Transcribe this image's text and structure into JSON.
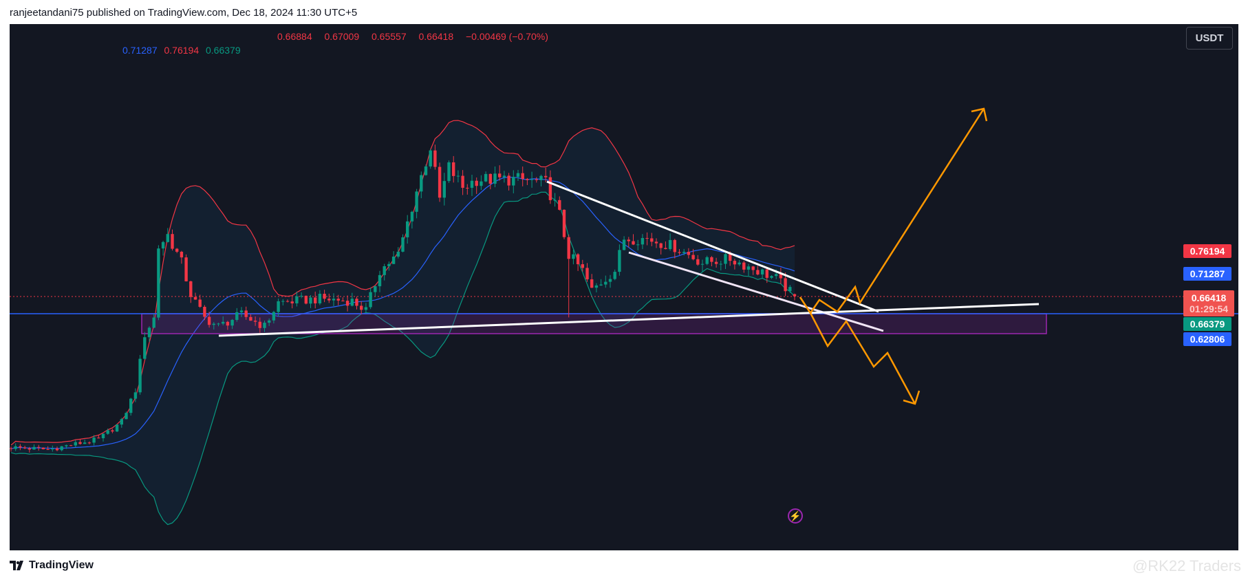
{
  "header": {
    "publisher_line": "ranjeetandani75 published on TradingView.com, Dec 18, 2024 11:30 UTC+5"
  },
  "legend": {
    "ohlc": [
      "0.66884",
      "0.67009",
      "0.65557",
      "0.66418",
      "−0.00469 (−0.70%)"
    ],
    "bollinger": [
      {
        "value": "0.71287",
        "color": "#2962ff"
      },
      {
        "value": "0.76194",
        "color": "#f23645"
      },
      {
        "value": "0.66379",
        "color": "#089981"
      }
    ]
  },
  "currency_button": "USDT",
  "price_labels": [
    {
      "name": "bb-upper",
      "value": "0.76194",
      "color": "#f23645"
    },
    {
      "name": "bb-basis",
      "value": "0.71287",
      "color": "#2962ff"
    },
    {
      "name": "last-price",
      "value": "0.66418",
      "countdown": "01:29:54",
      "color": "#f05350"
    },
    {
      "name": "bb-lower",
      "value": "0.66379",
      "color": "#089981"
    },
    {
      "name": "horizontal-line",
      "value": "0.62806",
      "color": "#2962ff"
    }
  ],
  "footer": {
    "brand": "TradingView",
    "watermark": "@RK22 Traders"
  },
  "colors": {
    "up": "#089981",
    "down": "#f23645",
    "background": "#131722",
    "zone": "#9c27b0",
    "projection": "#ff9800"
  },
  "chart_data": {
    "type": "candlestick",
    "symbol_quote": "USDT",
    "candles": 171,
    "close_path_keypoints": [
      [
        0,
        0.338
      ],
      [
        8,
        0.333
      ],
      [
        19,
        0.355
      ],
      [
        24,
        0.393
      ],
      [
        27,
        0.462
      ],
      [
        29,
        0.582
      ],
      [
        31,
        0.617
      ],
      [
        32,
        0.771
      ],
      [
        34,
        0.797
      ],
      [
        37,
        0.737
      ],
      [
        39,
        0.668
      ],
      [
        42,
        0.617
      ],
      [
        45,
        0.599
      ],
      [
        50,
        0.625
      ],
      [
        55,
        0.599
      ],
      [
        58,
        0.651
      ],
      [
        67,
        0.659
      ],
      [
        74,
        0.654
      ],
      [
        77,
        0.634
      ],
      [
        80,
        0.72
      ],
      [
        84,
        0.754
      ],
      [
        88,
        0.892
      ],
      [
        91,
        0.987
      ],
      [
        93,
        0.874
      ],
      [
        95,
        0.943
      ],
      [
        98,
        0.9
      ],
      [
        101,
        0.917
      ],
      [
        110,
        0.917
      ],
      [
        116,
        0.909
      ],
      [
        119,
        0.84
      ],
      [
        121,
        0.754
      ],
      [
        124,
        0.72
      ],
      [
        126,
        0.677
      ],
      [
        131,
        0.72
      ],
      [
        133,
        0.789
      ],
      [
        138,
        0.789
      ],
      [
        144,
        0.771
      ],
      [
        150,
        0.737
      ],
      [
        156,
        0.745
      ],
      [
        162,
        0.72
      ],
      [
        166,
        0.703
      ],
      [
        170,
        0.66418
      ]
    ],
    "last": {
      "open": 0.66884,
      "high": 0.67009,
      "low": 0.65557,
      "close": 0.66418
    },
    "indicator": {
      "name": "Bollinger Bands",
      "length": 20,
      "mult": 2,
      "basis": 0.71287,
      "upper": 0.76194,
      "lower": 0.66379
    },
    "horizontal_line": 0.62806,
    "support_zone": [
      0.58,
      0.62806
    ]
  }
}
